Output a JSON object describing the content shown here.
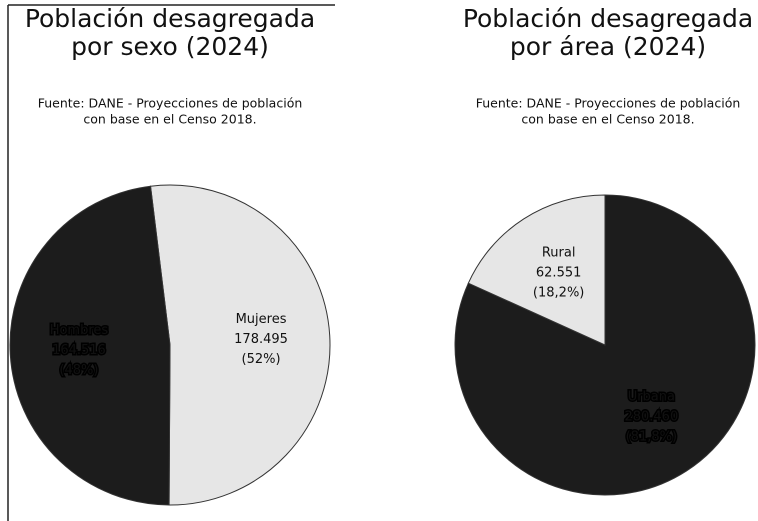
{
  "chart_data": [
    {
      "type": "pie",
      "title": [
        "Población desagregada",
        "por sexo (2024)"
      ],
      "subtitle": [
        "Fuente: DANE - Proyecciones de población",
        "con base en el Censo 2018."
      ],
      "categories": [
        "Mujeres",
        "Hombres"
      ],
      "values": [
        178495,
        164516
      ],
      "value_labels": [
        "178.495",
        "164.516"
      ],
      "percent_labels": [
        "(52%)",
        "(48%)"
      ],
      "colors": [
        "#e6e6e6",
        "#1c1c1c"
      ]
    },
    {
      "type": "pie",
      "title": [
        "Población desagregada",
        "por área (2024)"
      ],
      "subtitle": [
        "Fuente: DANE - Proyecciones de población",
        "con base en el Censo 2018."
      ],
      "categories": [
        "Urbana",
        "Rural"
      ],
      "values": [
        280460,
        62551
      ],
      "value_labels": [
        "280.460",
        "62.551"
      ],
      "percent_labels": [
        "(81,8%)",
        "(18,2%)"
      ],
      "colors": [
        "#1c1c1c",
        "#e6e6e6"
      ]
    }
  ]
}
